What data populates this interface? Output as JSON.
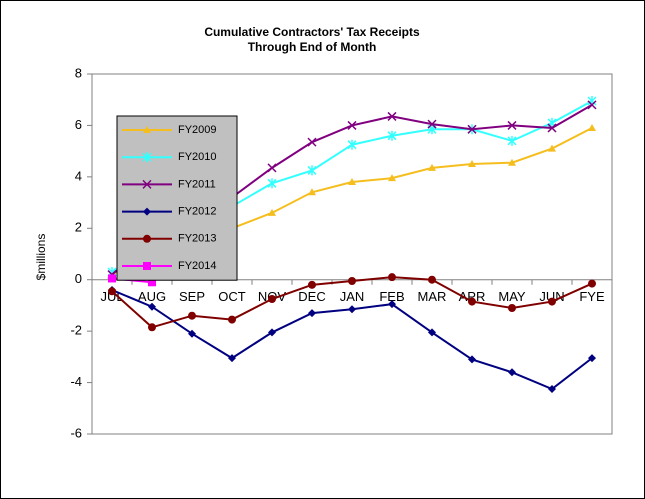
{
  "chart_data": {
    "type": "line",
    "title": [
      "Cumulative Contractors' Tax Receipts",
      "Through End of Month"
    ],
    "y_label": "$millions",
    "categories": [
      "JUL",
      "AUG",
      "SEP",
      "OCT",
      "NOV",
      "DEC",
      "JAN",
      "FEB",
      "MAR",
      "APR",
      "MAY",
      "JUN",
      "FYE"
    ],
    "ylim": [
      -6,
      8
    ],
    "yticks": [
      -6,
      -4,
      -2,
      0,
      2,
      4,
      6,
      8
    ],
    "grid": false,
    "legend": "upper left",
    "series": [
      {
        "name": "FY2009",
        "color": "#f5be1e",
        "marker": "triangle",
        "values": [
          0.2,
          1.0,
          1.5,
          2.0,
          2.6,
          3.4,
          3.8,
          3.95,
          4.35,
          4.5,
          4.55,
          5.1,
          5.9
        ]
      },
      {
        "name": "FY2010",
        "color": "#33ffff",
        "marker": "star",
        "values": [
          0.3,
          1.2,
          2.0,
          2.85,
          3.75,
          4.25,
          5.25,
          5.6,
          5.85,
          5.85,
          5.4,
          6.1,
          6.95
        ]
      },
      {
        "name": "FY2011",
        "color": "#800080",
        "marker": "x",
        "values": [
          0.2,
          1.5,
          2.5,
          3.2,
          4.35,
          5.35,
          6.0,
          6.35,
          6.05,
          5.85,
          6.0,
          5.9,
          6.8
        ]
      },
      {
        "name": "FY2012",
        "color": "#000080",
        "marker": "diamond",
        "values": [
          -0.4,
          -1.05,
          -2.1,
          -3.05,
          -2.05,
          -1.3,
          -1.15,
          -0.95,
          -2.05,
          -3.1,
          -3.6,
          -4.25,
          -3.05
        ]
      },
      {
        "name": "FY2013",
        "color": "#800000",
        "marker": "circle",
        "values": [
          -0.45,
          -1.85,
          -1.4,
          -1.55,
          -0.75,
          -0.2,
          -0.05,
          0.1,
          0.0,
          -0.85,
          -1.1,
          -0.85,
          -0.15
        ]
      },
      {
        "name": "FY2014",
        "color": "#ff00ff",
        "marker": "square",
        "values": [
          0.05,
          -0.1,
          null,
          null,
          null,
          null,
          null,
          null,
          null,
          null,
          null,
          null,
          null
        ]
      }
    ]
  }
}
